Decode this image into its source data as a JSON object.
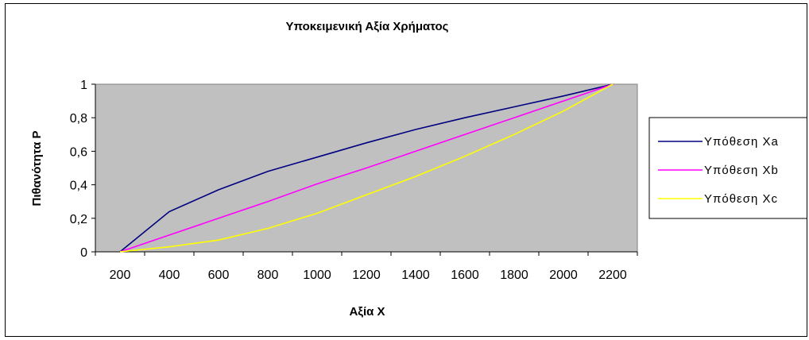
{
  "chart_data": {
    "type": "line",
    "title": "Υποκειμενική Αξία Χρήματος",
    "xlabel": "Αξία Χ",
    "ylabel": "Πιθανότητα Ρ",
    "x_ticks": [
      "200",
      "400",
      "600",
      "800",
      "1000",
      "1200",
      "1400",
      "1600",
      "1800",
      "2000",
      "2200"
    ],
    "y_ticks": [
      "0",
      "0,2",
      "0,4",
      "0,6",
      "0,8",
      "1"
    ],
    "xlim": [
      100,
      2300
    ],
    "ylim": [
      0,
      1
    ],
    "grid": false,
    "legend_position": "right",
    "plot_background": "#c0c0c0",
    "series": [
      {
        "name": "Υπόθεση Xa",
        "color": "#000080",
        "points": [
          [
            200,
            0
          ],
          [
            400,
            0.24
          ],
          [
            600,
            0.37
          ],
          [
            800,
            0.48
          ],
          [
            1000,
            0.565
          ],
          [
            1200,
            0.65
          ],
          [
            1400,
            0.73
          ],
          [
            1600,
            0.8
          ],
          [
            1800,
            0.865
          ],
          [
            2000,
            0.93
          ],
          [
            2200,
            1
          ]
        ]
      },
      {
        "name": "Υπόθεση Xb",
        "color": "#ff00ff",
        "points": [
          [
            200,
            0
          ],
          [
            400,
            0.1
          ],
          [
            600,
            0.2
          ],
          [
            800,
            0.3
          ],
          [
            1000,
            0.405
          ],
          [
            1200,
            0.5
          ],
          [
            1400,
            0.6
          ],
          [
            1600,
            0.7
          ],
          [
            1800,
            0.8
          ],
          [
            2000,
            0.9
          ],
          [
            2200,
            1
          ]
        ]
      },
      {
        "name": "Υπόθεση Xc",
        "color": "#ffff00",
        "points": [
          [
            200,
            0
          ],
          [
            400,
            0.03
          ],
          [
            600,
            0.07
          ],
          [
            800,
            0.14
          ],
          [
            1000,
            0.23
          ],
          [
            1200,
            0.34
          ],
          [
            1400,
            0.45
          ],
          [
            1600,
            0.57
          ],
          [
            1800,
            0.7
          ],
          [
            2000,
            0.84
          ],
          [
            2200,
            1
          ]
        ]
      }
    ]
  }
}
